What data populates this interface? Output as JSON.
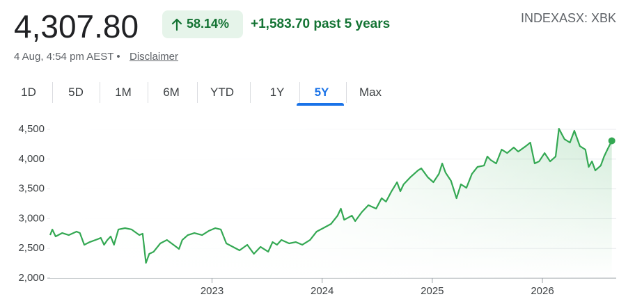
{
  "header": {
    "price": "4,307.80",
    "change_percent": "58.14%",
    "change_absolute": "+1,583.70 past 5 years",
    "ticker": "INDEXASX: XBK",
    "timestamp": "4 Aug, 4:54 pm AEST •",
    "disclaimer": "Disclaimer"
  },
  "tabs": {
    "items": [
      "1D",
      "5D",
      "1M",
      "6M",
      "YTD",
      "1Y",
      "5Y",
      "Max"
    ],
    "selected": "5Y"
  },
  "chart_data": {
    "type": "line",
    "x": [
      2021.53,
      2021.55,
      2021.58,
      2021.64,
      2021.7,
      2021.77,
      2021.8,
      2021.84,
      2021.89,
      2021.96,
      2021.99,
      2022.02,
      2022.05,
      2022.08,
      2022.11,
      2022.15,
      2022.21,
      2022.27,
      2022.34,
      2022.37,
      2022.4,
      2022.43,
      2022.47,
      2022.53,
      2022.59,
      2022.65,
      2022.7,
      2022.73,
      2022.78,
      2022.84,
      2022.91,
      2022.97,
      2023.03,
      2023.08,
      2023.13,
      2023.19,
      2023.25,
      2023.32,
      2023.38,
      2023.44,
      2023.51,
      2023.55,
      2023.59,
      2023.63,
      2023.7,
      2023.76,
      2023.82,
      2023.89,
      2023.95,
      2024.01,
      2024.08,
      2024.14,
      2024.17,
      2024.2,
      2024.27,
      2024.3,
      2024.36,
      2024.42,
      2024.49,
      2024.54,
      2024.58,
      2024.63,
      2024.68,
      2024.71,
      2024.74,
      2024.8,
      2024.87,
      2024.9,
      2024.96,
      2025.01,
      2025.06,
      2025.09,
      2025.12,
      2025.17,
      2025.22,
      2025.26,
      2025.31,
      2025.36,
      2025.41,
      2025.47,
      2025.5,
      2025.53,
      2025.58,
      2025.63,
      2025.68,
      2025.74,
      2025.78,
      2025.85,
      2025.89,
      2025.93,
      2025.97,
      2026.02,
      2026.07,
      2026.12,
      2026.15,
      2026.2,
      2026.25,
      2026.29,
      2026.34,
      2026.39,
      2026.42,
      2026.45,
      2026.48,
      2026.53,
      2026.56,
      2026.59,
      2026.63
    ],
    "series": [
      {
        "color": "#34a853",
        "values": [
          2724,
          2818,
          2701,
          2759,
          2724,
          2783,
          2759,
          2561,
          2607,
          2654,
          2677,
          2561,
          2642,
          2701,
          2561,
          2818,
          2841,
          2818,
          2724,
          2748,
          2257,
          2409,
          2444,
          2584,
          2642,
          2561,
          2491,
          2642,
          2724,
          2759,
          2724,
          2794,
          2841,
          2818,
          2584,
          2526,
          2467,
          2561,
          2409,
          2526,
          2444,
          2607,
          2561,
          2642,
          2584,
          2607,
          2561,
          2642,
          2783,
          2841,
          2911,
          3051,
          3168,
          2981,
          3051,
          2958,
          3110,
          3226,
          3168,
          3343,
          3285,
          3460,
          3612,
          3460,
          3577,
          3694,
          3810,
          3845,
          3694,
          3612,
          3752,
          3927,
          3775,
          3635,
          3343,
          3577,
          3518,
          3752,
          3869,
          3892,
          4044,
          3986,
          3927,
          4161,
          4102,
          4196,
          4126,
          4219,
          4278,
          3927,
          3962,
          4102,
          3962,
          4044,
          4511,
          4336,
          4278,
          4476,
          4219,
          4161,
          3869,
          3962,
          3810,
          3892,
          4044,
          4161,
          4307.8
        ]
      }
    ],
    "xlim": [
      2021.53,
      2026.67
    ],
    "xticks": [
      2023,
      2024,
      2025,
      2026
    ],
    "ylim": [
      2000,
      4500
    ],
    "yticks": [
      {
        "value": 2000,
        "label": "2,000"
      },
      {
        "value": 2500,
        "label": "2,500"
      },
      {
        "value": 3000,
        "label": "3,000"
      },
      {
        "value": 3500,
        "label": "3,500"
      },
      {
        "value": 4000,
        "label": "4,000"
      },
      {
        "value": 4500,
        "label": "4,500"
      }
    ],
    "grid": true
  }
}
